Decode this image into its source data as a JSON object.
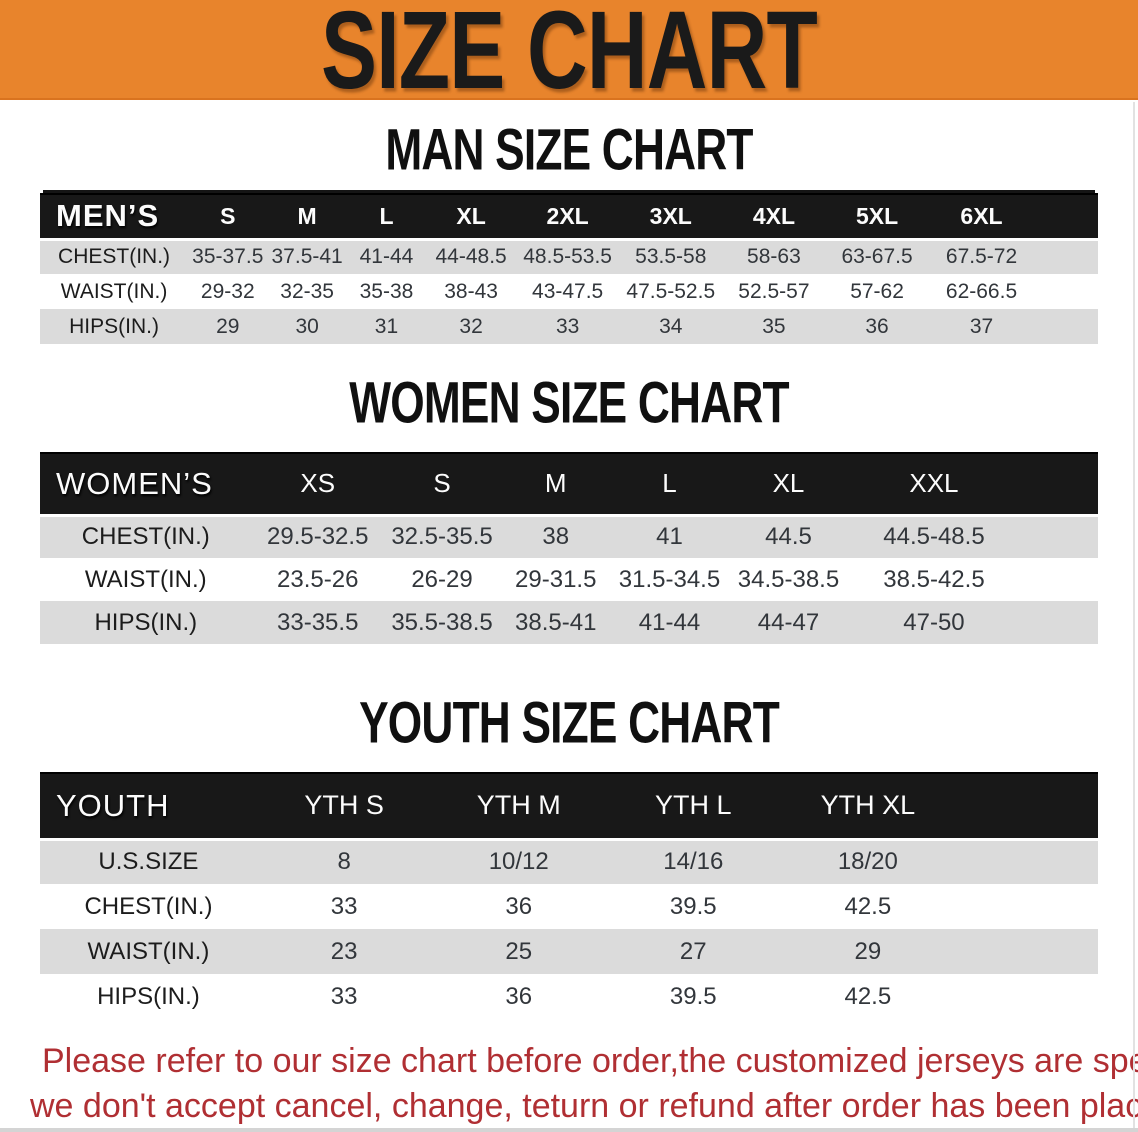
{
  "banner": {
    "title": "SIZE CHART",
    "bg_color": "#E8842C",
    "text_color": "#1A1A1A"
  },
  "men": {
    "heading": "MAN SIZE CHART",
    "header": [
      "MEN’S",
      "S",
      "M",
      "L",
      "XL",
      "2XL",
      "3XL",
      "4XL",
      "5XL",
      "6XL"
    ],
    "rows": [
      {
        "label": "CHEST(IN.)",
        "values": [
          "35-37.5",
          "37.5-41",
          "41-44",
          "44-48.5",
          "48.5-53.5",
          "53.5-58",
          "58-63",
          "63-67.5",
          "67.5-72"
        ]
      },
      {
        "label": "WAIST(IN.)",
        "values": [
          "29-32",
          "32-35",
          "35-38",
          "38-43",
          "43-47.5",
          "47.5-52.5",
          "52.5-57",
          "57-62",
          "62-66.5"
        ]
      },
      {
        "label": "HIPS(IN.)",
        "values": [
          "29",
          "30",
          "31",
          "32",
          "33",
          "34",
          "35",
          "36",
          "37"
        ]
      }
    ]
  },
  "women": {
    "heading": "WOMEN SIZE CHART",
    "header": [
      "WOMEN’S",
      "XS",
      "S",
      "M",
      "L",
      "XL",
      "XXL"
    ],
    "rows": [
      {
        "label": "CHEST(IN.)",
        "values": [
          "29.5-32.5",
          "32.5-35.5",
          "38",
          "41",
          "44.5",
          "44.5-48.5"
        ]
      },
      {
        "label": "WAIST(IN.)",
        "values": [
          "23.5-26",
          "26-29",
          "29-31.5",
          "31.5-34.5",
          "34.5-38.5",
          "38.5-42.5"
        ]
      },
      {
        "label": "HIPS(IN.)",
        "values": [
          "33-35.5",
          "35.5-38.5",
          "38.5-41",
          "41-44",
          "44-47",
          "47-50"
        ]
      }
    ]
  },
  "youth": {
    "heading": "YOUTH SIZE CHART",
    "header": [
      "YOUTH",
      "YTH S",
      "YTH M",
      "YTH L",
      "YTH XL"
    ],
    "rows": [
      {
        "label": "U.S.SIZE",
        "values": [
          "8",
          "10/12",
          "14/16",
          "18/20"
        ]
      },
      {
        "label": "CHEST(IN.)",
        "values": [
          "33",
          "36",
          "39.5",
          "42.5"
        ]
      },
      {
        "label": "WAIST(IN.)",
        "values": [
          "23",
          "25",
          "27",
          "29"
        ]
      },
      {
        "label": "HIPS(IN.)",
        "values": [
          "33",
          "36",
          "39.5",
          "42.5"
        ]
      }
    ]
  },
  "footer": {
    "line1": "Please refer to our size chart before order,the customized jerseys are special products,",
    "line2": "we don't accept cancel, change, teturn or refund after order has been placed!",
    "color": "#B02F33"
  }
}
